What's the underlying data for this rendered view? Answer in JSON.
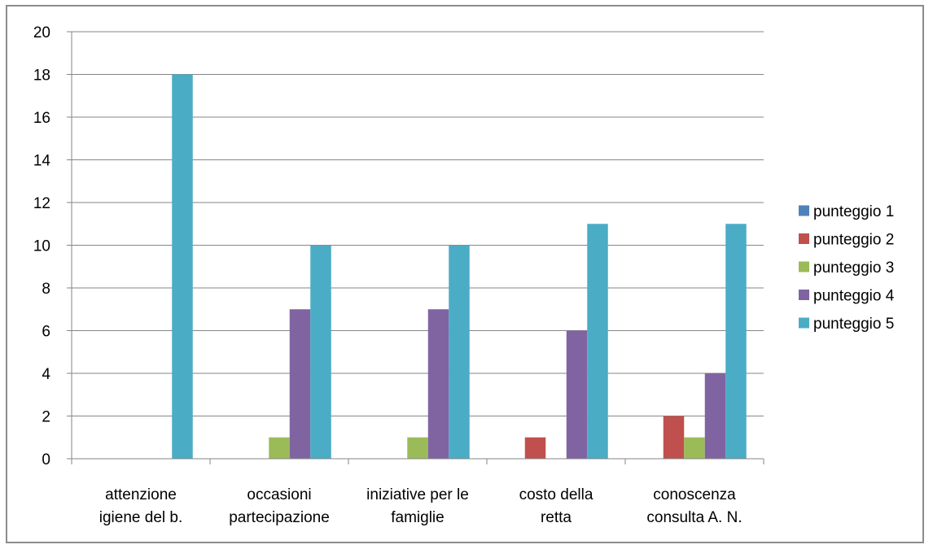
{
  "chart_data": {
    "type": "bar",
    "title": "",
    "xlabel": "",
    "ylabel": "",
    "ylim": [
      0,
      20
    ],
    "y_ticks": [
      0,
      2,
      4,
      6,
      8,
      10,
      12,
      14,
      16,
      18,
      20
    ],
    "grid": true,
    "legend_position": "right",
    "categories": [
      [
        "attenzione",
        "igiene del b."
      ],
      [
        "occasioni",
        "partecipazione"
      ],
      [
        "iniziative per le",
        "famiglie"
      ],
      [
        "costo della",
        "retta"
      ],
      [
        "conoscenza",
        "consulta A. N."
      ]
    ],
    "series": [
      {
        "name": "punteggio 1",
        "color": "#4F81BD",
        "values": [
          0,
          0,
          0,
          0,
          0
        ]
      },
      {
        "name": "punteggio 2",
        "color": "#C0504D",
        "values": [
          0,
          0,
          0,
          1,
          2
        ]
      },
      {
        "name": "punteggio 3",
        "color": "#9BBB59",
        "values": [
          0,
          1,
          1,
          0,
          1
        ]
      },
      {
        "name": "punteggio 4",
        "color": "#8064A2",
        "values": [
          0,
          7,
          7,
          6,
          4
        ]
      },
      {
        "name": "punteggio 5",
        "color": "#4BACC6",
        "values": [
          18,
          10,
          10,
          11,
          11
        ]
      }
    ]
  }
}
